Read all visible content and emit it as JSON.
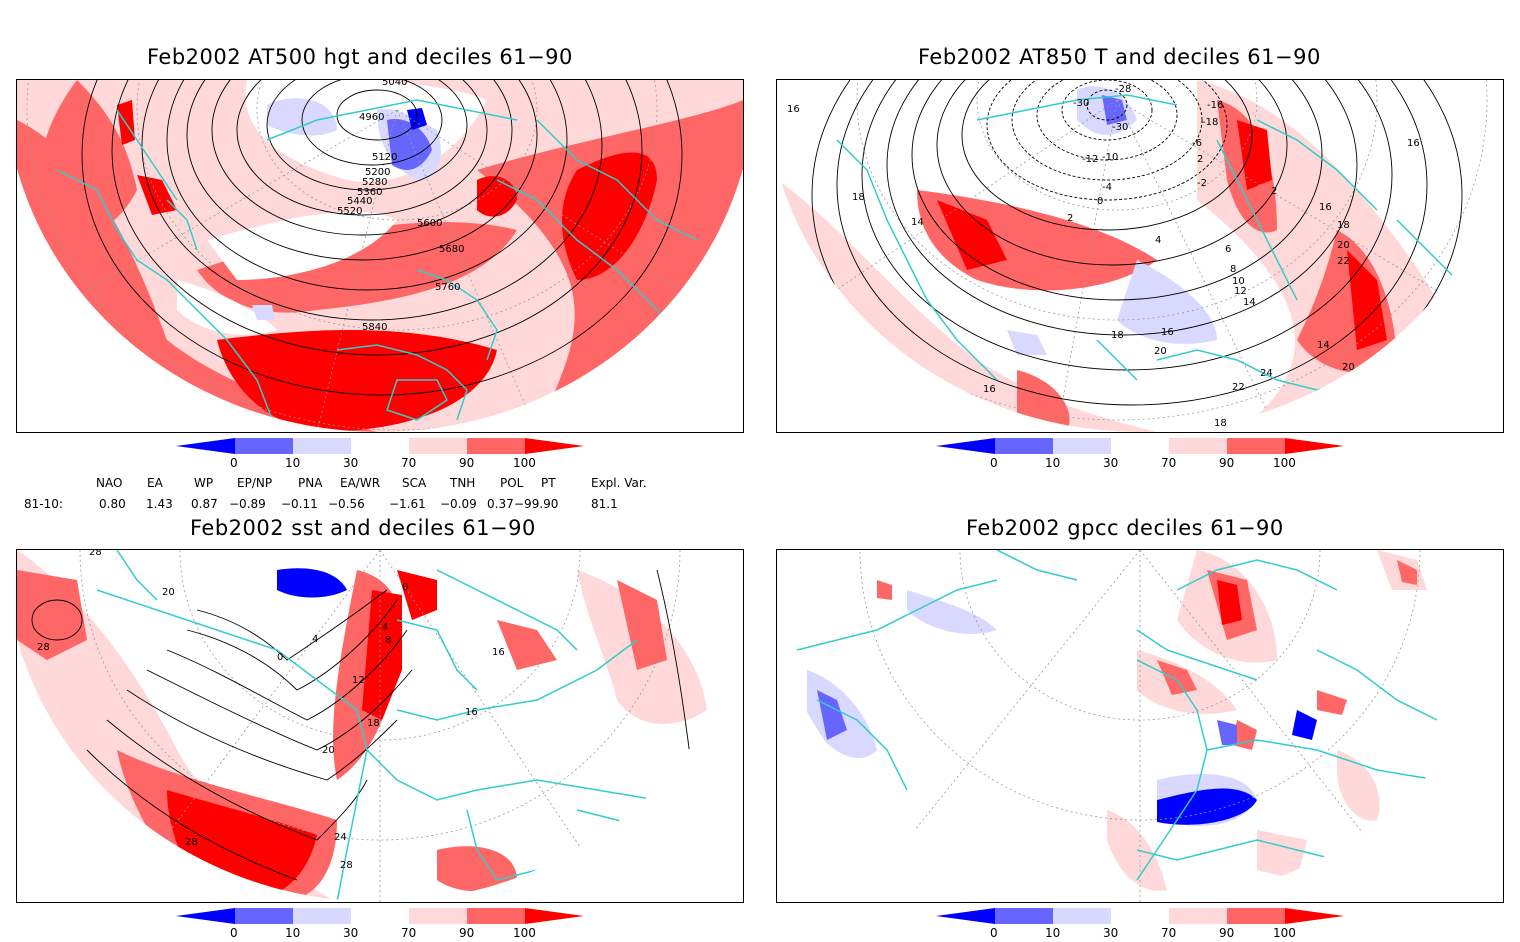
{
  "panels": {
    "tl": {
      "title": "Feb2002 AT500 hgt and deciles 61−90",
      "contours": [
        "4960",
        "5040",
        "5120",
        "5200",
        "5280",
        "5360",
        "5440",
        "5520",
        "5600",
        "5680",
        "5760",
        "5840"
      ]
    },
    "tr": {
      "title": "Feb2002 AT850 T and deciles 61−90",
      "contours": [
        "-28",
        "-30",
        "-30",
        "-16",
        "-18",
        "16",
        "16",
        "-12",
        "-10",
        "-6",
        "-4",
        "-2",
        "0",
        "2",
        "2",
        "2",
        "4",
        "6",
        "8",
        "10",
        "12",
        "14",
        "14",
        "16",
        "16",
        "18",
        "18",
        "18",
        "20",
        "20",
        "20",
        "22",
        "22",
        "24",
        "14",
        "16",
        "18"
      ]
    },
    "bl": {
      "title": "Feb2002 sst and deciles 61−90",
      "contours": [
        "28",
        "28",
        "20",
        "0",
        "4",
        "0",
        "4",
        "8",
        "12",
        "16",
        "16",
        "18",
        "20",
        "24",
        "28",
        "28"
      ]
    },
    "br": {
      "title": "Feb2002 gpcc deciles 61−90",
      "contours": []
    }
  },
  "colorbar": {
    "ticks": [
      "0",
      "10",
      "30",
      "70",
      "90",
      "100"
    ],
    "colors": [
      "#0000ff",
      "#6666ff",
      "#d9d9ff",
      "#ffffff",
      "#ffd9d9",
      "#ff6666",
      "#ff0000"
    ]
  },
  "indices": {
    "names": [
      "NAO",
      "EA",
      "WP",
      "EP/NP",
      "PNA",
      "EA/WR",
      "SCA",
      "TNH",
      "POL",
      "PT",
      "Expl. Var."
    ],
    "row_label": "81-10:",
    "values": [
      "0.80",
      "1.43",
      "0.87",
      "−0.89",
      "−0.11",
      "−0.56",
      "−1.61",
      "−0.09",
      "0.37",
      "−99.90",
      "81.1"
    ]
  },
  "map_style": {
    "coast_color": "#33cccc",
    "grid_color": "#999999"
  }
}
